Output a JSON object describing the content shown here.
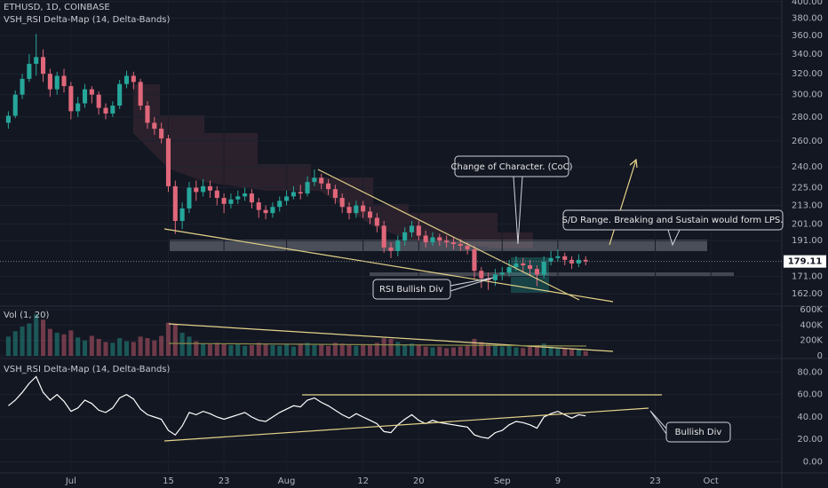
{
  "chart_data": {
    "type": "candlestick",
    "title": "ETHUSD, 1D, COINBASE",
    "indicator_title": "VSH_RSI Delta-Map (14, Delta-Bands)",
    "up_color": "#26a69a",
    "down_color": "#e0677a",
    "log": true,
    "open": [
      275,
      281,
      300,
      315,
      330,
      337,
      320,
      305,
      318,
      308,
      285,
      292,
      305,
      300,
      288,
      283,
      290,
      310,
      318,
      312,
      290,
      275,
      270,
      262,
      226,
      203,
      211,
      225,
      222,
      226,
      223,
      218,
      214,
      217,
      219,
      221,
      215,
      210,
      208,
      212,
      216,
      219,
      222,
      221,
      229,
      232,
      228,
      224,
      218,
      212,
      208,
      213,
      209,
      205,
      200,
      187,
      185,
      191,
      196,
      200,
      194,
      190,
      193,
      191,
      190,
      189,
      188,
      186,
      174,
      170,
      169,
      172,
      173,
      176,
      178,
      177,
      175,
      172,
      179,
      181,
      182,
      180,
      178,
      180
    ],
    "high": [
      285,
      304,
      320,
      340,
      362,
      345,
      325,
      322,
      325,
      312,
      298,
      310,
      308,
      303,
      292,
      294,
      314,
      323,
      322,
      315,
      294,
      280,
      275,
      265,
      230,
      215,
      229,
      230,
      231,
      230,
      226,
      221,
      221,
      223,
      225,
      224,
      218,
      213,
      215,
      219,
      223,
      226,
      227,
      233,
      238,
      235,
      231,
      227,
      221,
      215,
      216,
      216,
      212,
      208,
      203,
      190,
      194,
      199,
      203,
      203,
      197,
      196,
      195,
      194,
      193,
      192,
      190,
      188,
      176,
      173,
      175,
      176,
      180,
      182,
      181,
      180,
      177,
      182,
      185,
      186,
      184,
      182,
      183,
      182
    ],
    "low": [
      270,
      279,
      296,
      312,
      318,
      312,
      298,
      300,
      302,
      278,
      280,
      288,
      292,
      282,
      278,
      280,
      287,
      306,
      305,
      286,
      270,
      265,
      258,
      222,
      195,
      198,
      208,
      216,
      219,
      218,
      213,
      208,
      211,
      214,
      216,
      211,
      205,
      204,
      205,
      209,
      213,
      217,
      217,
      219,
      226,
      224,
      220,
      214,
      208,
      204,
      205,
      205,
      201,
      196,
      184,
      181,
      182,
      188,
      193,
      191,
      187,
      188,
      188,
      187,
      186,
      185,
      183,
      170,
      165,
      164,
      166,
      169,
      171,
      174,
      173,
      171,
      166,
      170,
      177,
      179,
      177,
      175,
      176,
      177
    ],
    "close": [
      281,
      300,
      315,
      330,
      337,
      320,
      305,
      318,
      308,
      285,
      292,
      305,
      300,
      288,
      283,
      290,
      310,
      318,
      312,
      290,
      275,
      270,
      262,
      226,
      203,
      211,
      225,
      222,
      226,
      223,
      218,
      214,
      217,
      219,
      221,
      215,
      210,
      208,
      212,
      216,
      219,
      222,
      221,
      229,
      232,
      228,
      224,
      218,
      212,
      208,
      213,
      209,
      205,
      200,
      187,
      185,
      191,
      196,
      200,
      194,
      190,
      193,
      191,
      190,
      189,
      188,
      186,
      174,
      170,
      169,
      172,
      173,
      176,
      178,
      177,
      175,
      172,
      179,
      181,
      182,
      180,
      178,
      180,
      179.11
    ],
    "ylim": [
      156,
      402
    ],
    "yticks": [
      {
        "value": 162,
        "label": "162.00"
      },
      {
        "value": 171,
        "label": "171.00"
      },
      {
        "value": 191,
        "label": "191.00"
      },
      {
        "value": 201,
        "label": "201.00"
      },
      {
        "value": 213,
        "label": "213.00"
      },
      {
        "value": 225,
        "label": "225.00"
      },
      {
        "value": 240,
        "label": "240.00"
      },
      {
        "value": 260,
        "label": "260.00"
      },
      {
        "value": 280,
        "label": "280.00"
      },
      {
        "value": 300,
        "label": "300.00"
      },
      {
        "value": 320,
        "label": "320.00"
      },
      {
        "value": 340,
        "label": "340.00"
      },
      {
        "value": 360,
        "label": "360.00"
      },
      {
        "value": 380,
        "label": "380.00"
      },
      {
        "value": 400,
        "label": "400.00"
      }
    ],
    "xlim": [
      -1.2,
      111.2
    ],
    "xticks": [
      {
        "value": 9,
        "label": "Jul"
      },
      {
        "value": 23,
        "label": "15"
      },
      {
        "value": 31,
        "label": "23"
      },
      {
        "value": 40,
        "label": "Aug"
      },
      {
        "value": 51,
        "label": "12"
      },
      {
        "value": 59,
        "label": "20"
      },
      {
        "value": 71,
        "label": "Sep"
      },
      {
        "value": 79,
        "label": "9"
      },
      {
        "value": 93,
        "label": "23"
      },
      {
        "value": 101,
        "label": "Oct"
      }
    ],
    "volume": {
      "title": "Vol (1, 20)",
      "values": [
        250000,
        320000,
        380000,
        420000,
        540000,
        470000,
        350000,
        300000,
        280000,
        330000,
        240000,
        200000,
        260000,
        220000,
        180000,
        170000,
        230000,
        190000,
        180000,
        250000,
        230000,
        200000,
        260000,
        430000,
        410000,
        300000,
        250000,
        190000,
        160000,
        150000,
        170000,
        160000,
        140000,
        150000,
        130000,
        140000,
        170000,
        150000,
        140000,
        130000,
        150000,
        120000,
        160000,
        170000,
        140000,
        150000,
        130000,
        170000,
        160000,
        150000,
        130000,
        140000,
        150000,
        170000,
        230000,
        220000,
        180000,
        150000,
        160000,
        140000,
        120000,
        110000,
        120000,
        100000,
        110000,
        120000,
        130000,
        220000,
        180000,
        150000,
        140000,
        120000,
        130000,
        110000,
        100000,
        120000,
        140000,
        160000,
        120000,
        110000,
        100000,
        90000,
        80000,
        60000
      ],
      "ylim": [
        -34000,
        646000
      ],
      "yticks": [
        0,
        {
          "value": 200000,
          "label": "200K"
        },
        {
          "value": 400000,
          "label": "400K"
        },
        {
          "value": 600000,
          "label": "600K"
        }
      ]
    },
    "rsi": {
      "color": "#ffffff",
      "values": [
        50,
        55,
        62,
        70,
        76,
        62,
        55,
        60,
        54,
        45,
        48,
        55,
        52,
        46,
        44,
        48,
        57,
        60,
        56,
        47,
        42,
        40,
        38,
        28,
        24,
        32,
        44,
        42,
        45,
        43,
        40,
        38,
        40,
        42,
        44,
        40,
        37,
        36,
        40,
        44,
        47,
        50,
        49,
        55,
        57,
        53,
        50,
        46,
        42,
        39,
        43,
        40,
        37,
        34,
        27,
        26,
        33,
        38,
        42,
        37,
        34,
        37,
        35,
        34,
        33,
        32,
        31,
        24,
        22,
        21,
        26,
        28,
        33,
        36,
        35,
        33,
        30,
        40,
        43,
        45,
        42,
        39,
        42,
        41
      ],
      "ylim": [
        -9.9,
        92.2
      ],
      "yticks": [
        {
          "value": 0,
          "label": "0.00"
        },
        {
          "value": 20,
          "label": "20.00"
        },
        {
          "value": 40,
          "label": "40.00"
        },
        {
          "value": 60,
          "label": "60.00"
        },
        {
          "value": 80,
          "label": "80.00"
        }
      ]
    },
    "annotations": [
      "Change of Character. (CoC)",
      "S/D Range. Breaking and Sustain would form LPS.",
      "RSI Bullish Div",
      "Bullish Div"
    ]
  }
}
